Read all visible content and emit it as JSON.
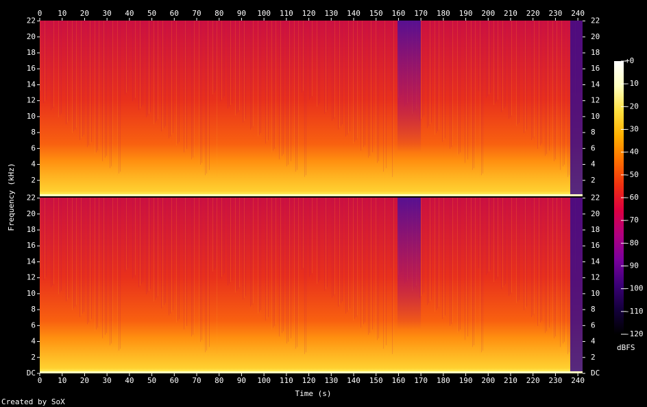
{
  "chart_data": {
    "type": "spectrogram",
    "xlabel": "Time (s)",
    "ylabel": "Frequency (kHz)",
    "footer": "Created by SoX",
    "xlim": [
      0,
      242.1
    ],
    "xticks": [
      0,
      10,
      20,
      30,
      40,
      50,
      60,
      70,
      80,
      90,
      100,
      110,
      120,
      130,
      140,
      150,
      160,
      170,
      180,
      190,
      200,
      210,
      220,
      230,
      240
    ],
    "channels": [
      {
        "ylim": [
          0,
          22.05
        ],
        "yticks": [
          2,
          4,
          6,
          8,
          10,
          12,
          14,
          16,
          18,
          20,
          22
        ]
      },
      {
        "ylim": [
          0,
          22.05
        ],
        "yticks": [
          {
            "value": 0,
            "label": "DC"
          },
          2,
          4,
          6,
          8,
          10,
          12,
          14,
          16,
          18,
          20,
          22
        ]
      }
    ],
    "colorbar": {
      "label": "dBFS",
      "lim": [
        -120,
        0
      ],
      "ticks": [
        {
          "value": 0,
          "label": "+0"
        },
        -10,
        -20,
        -30,
        -40,
        -50,
        -60,
        -70,
        -80,
        -90,
        -100,
        -110,
        -120
      ],
      "colormap": [
        "#000000",
        "#14003c",
        "#3c0078",
        "#7a009c",
        "#b00080",
        "#dc0040",
        "#f03010",
        "#ff7000",
        "#ffb000",
        "#ffe040",
        "#ffffc0",
        "#ffffff"
      ]
    }
  }
}
